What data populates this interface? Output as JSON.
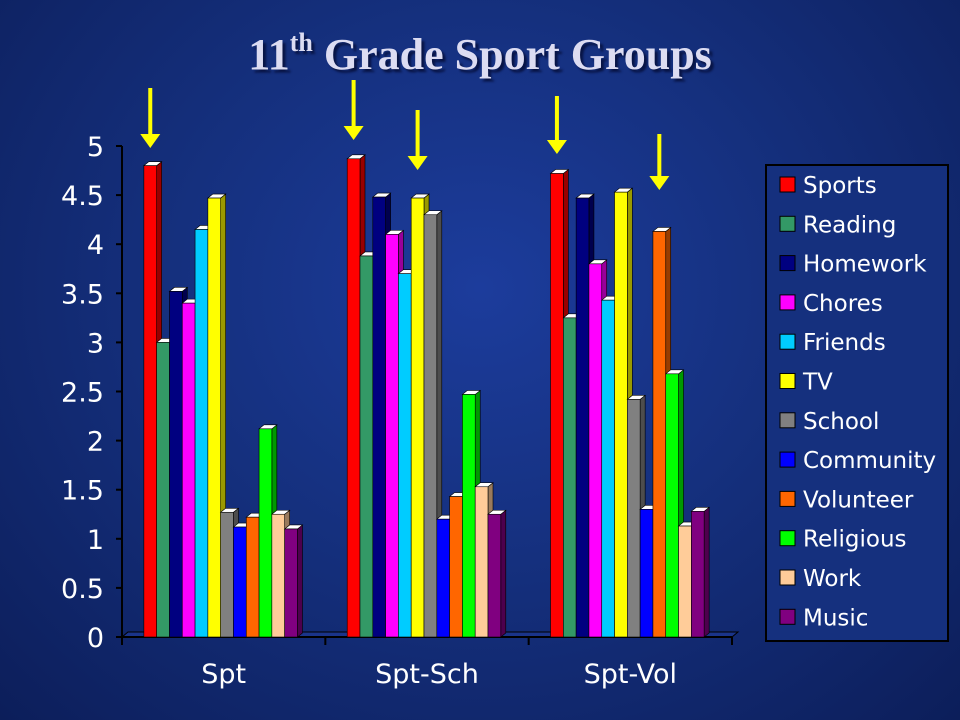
{
  "slide": {
    "title_main": "11",
    "title_sup": "th",
    "title_rest": " Grade Sport Groups",
    "background": "#15307e"
  },
  "chart_data": {
    "type": "bar",
    "title": "11th Grade Sport Groups",
    "categories": [
      "Spt",
      "Spt-Sch",
      "Spt-Vol"
    ],
    "ylim": [
      0,
      5
    ],
    "yticks": [
      "0",
      "0.5",
      "1",
      "1.5",
      "2",
      "2.5",
      "3",
      "3.5",
      "4",
      "4.5",
      "5"
    ],
    "grid": false,
    "legend_position": "right",
    "highlight_arrows": [
      "Sports",
      "TV",
      "Volunteer"
    ],
    "series": [
      {
        "name": "Sports",
        "color": "#ff0000",
        "values": [
          4.8,
          4.87,
          4.72
        ]
      },
      {
        "name": "Reading",
        "color": "#339966",
        "values": [
          3.0,
          3.88,
          3.25
        ]
      },
      {
        "name": "Homework",
        "color": "#000080",
        "values": [
          3.52,
          4.48,
          4.47
        ]
      },
      {
        "name": "Chores",
        "color": "#ff00ff",
        "values": [
          3.4,
          4.1,
          3.8
        ]
      },
      {
        "name": "Friends",
        "color": "#00ccff",
        "values": [
          4.15,
          3.7,
          3.43
        ]
      },
      {
        "name": "TV",
        "color": "#ffff00",
        "values": [
          4.47,
          4.47,
          4.53
        ]
      },
      {
        "name": "School",
        "color": "#808080",
        "values": [
          1.27,
          4.3,
          2.42
        ]
      },
      {
        "name": "Community",
        "color": "#0000ff",
        "values": [
          1.12,
          1.2,
          1.3
        ]
      },
      {
        "name": "Volunteer",
        "color": "#ff6600",
        "values": [
          1.22,
          1.43,
          4.13
        ]
      },
      {
        "name": "Religious",
        "color": "#00ff00",
        "values": [
          2.12,
          2.47,
          2.68
        ]
      },
      {
        "name": "Work",
        "color": "#ffcc99",
        "values": [
          1.25,
          1.53,
          1.13
        ]
      },
      {
        "name": "Music",
        "color": "#800080",
        "values": [
          1.1,
          1.25,
          1.28
        ]
      }
    ]
  }
}
